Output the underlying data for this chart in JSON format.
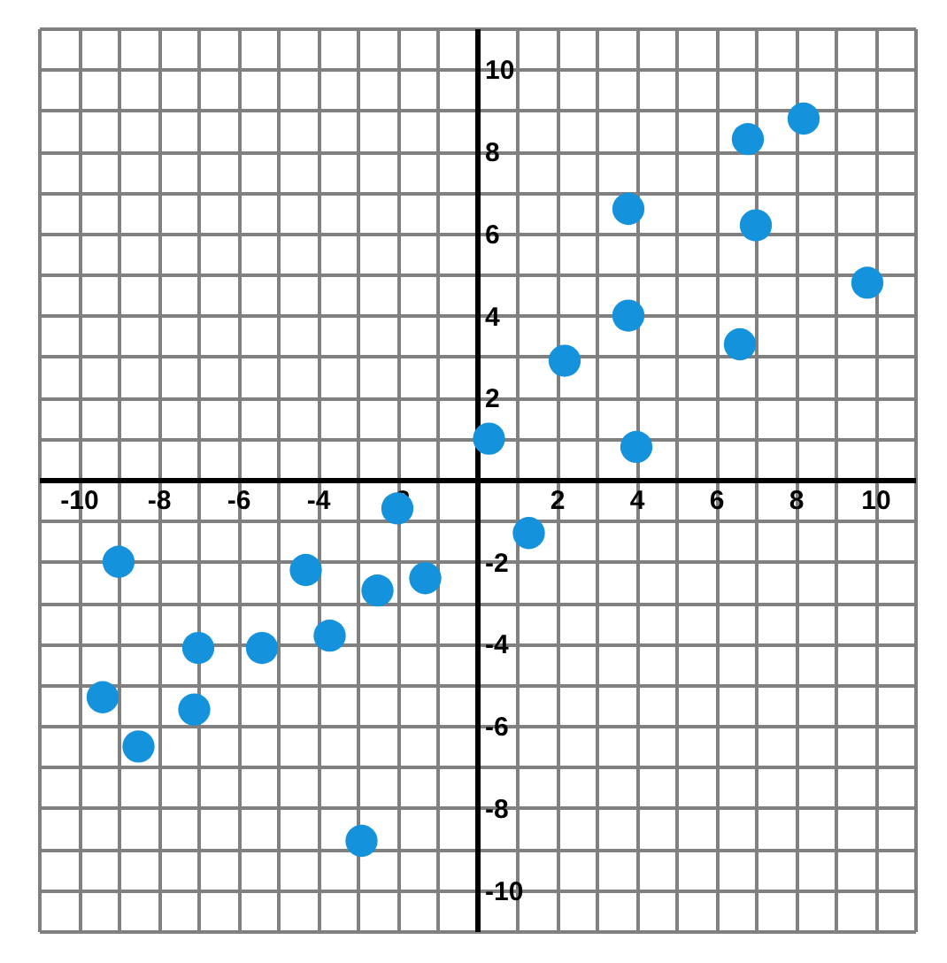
{
  "chart_data": {
    "type": "scatter",
    "x": [
      9.8,
      8.2,
      6.8,
      7.0,
      6.6,
      3.8,
      3.8,
      4.0,
      2.2,
      0.3,
      1.3,
      -1.3,
      -2.5,
      -2.0,
      -4.3,
      -3.7,
      -5.4,
      -7.0,
      -7.1,
      -9.0,
      -9.4,
      -8.5,
      -2.9
    ],
    "values": [
      4.8,
      8.8,
      8.3,
      6.2,
      3.3,
      6.6,
      4.0,
      0.8,
      2.9,
      1.0,
      -1.3,
      -2.4,
      -2.7,
      -0.7,
      -2.2,
      -3.8,
      -4.1,
      -4.1,
      -5.6,
      -2.0,
      -5.3,
      -6.5,
      -8.8
    ],
    "color": "#1592dc",
    "marker": "circle",
    "grid": true,
    "xlim": [
      -11,
      11
    ],
    "ylim": [
      -11,
      11
    ],
    "xticks": [
      {
        "value": -11,
        "label": null
      },
      -10,
      {
        "value": -9,
        "label": null
      },
      -8,
      {
        "value": -7,
        "label": null
      },
      -6,
      {
        "value": -5,
        "label": null
      },
      -4,
      {
        "value": -3,
        "label": null
      },
      -2,
      {
        "value": -1,
        "label": null
      },
      {
        "value": 0,
        "label": null
      },
      {
        "value": 1,
        "label": null
      },
      2,
      {
        "value": 3,
        "label": null
      },
      4,
      {
        "value": 5,
        "label": null
      },
      6,
      {
        "value": 7,
        "label": null
      },
      8,
      {
        "value": 9,
        "label": null
      },
      10,
      {
        "value": 11,
        "label": null
      }
    ],
    "yticks": [
      {
        "value": -11,
        "label": null
      },
      -10,
      {
        "value": -9,
        "label": null
      },
      -8,
      {
        "value": -7,
        "label": null
      },
      -6,
      {
        "value": -5,
        "label": null
      },
      -4,
      {
        "value": -3,
        "label": null
      },
      -2,
      {
        "value": -1,
        "label": null
      },
      {
        "value": 0,
        "label": null
      },
      {
        "value": 1,
        "label": null
      },
      2,
      {
        "value": 3,
        "label": null
      },
      4,
      {
        "value": 5,
        "label": null
      },
      6,
      {
        "value": 7,
        "label": null
      },
      8,
      {
        "value": 9,
        "label": null
      },
      10,
      {
        "value": 11,
        "label": null
      }
    ]
  }
}
